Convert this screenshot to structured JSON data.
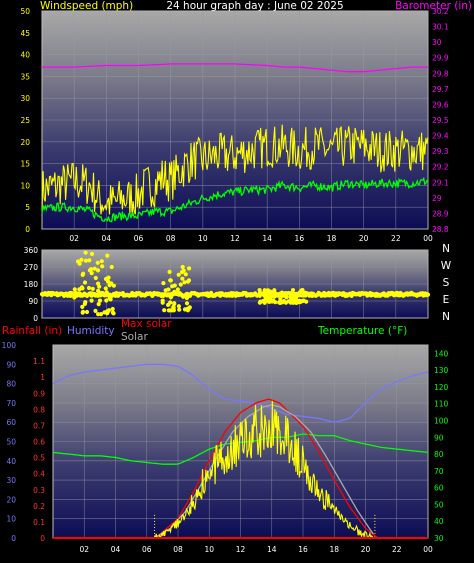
{
  "chart_data": [
    {
      "type": "line",
      "title": "24 hour graph day : June 02 2025",
      "left_axis_label": "Windspeed (mph)",
      "right_axis_label": "Barometer (in)",
      "left_ylim": [
        0,
        50
      ],
      "left_ticks": [
        0,
        5,
        10,
        15,
        20,
        25,
        30,
        35,
        40,
        45,
        50
      ],
      "right_ylim": [
        28.8,
        30.2
      ],
      "right_ticks": [
        "28.8",
        "28.9",
        "29",
        "29.1",
        "29.2",
        "29.3",
        "29.4",
        "29.5",
        "29.6",
        "29.7",
        "29.8",
        "29.9",
        "30",
        "30.1",
        "30.2"
      ],
      "x_range_hours": [
        0,
        24
      ],
      "x_ticks": [
        "02",
        "04",
        "06",
        "08",
        "10",
        "12",
        "14",
        "16",
        "18",
        "20",
        "22",
        "00"
      ],
      "grid": true,
      "series": [
        {
          "key": "gust",
          "color": "#ffff00",
          "axis": "left",
          "x": [
            0,
            1,
            2,
            3,
            3.5,
            4,
            4.5,
            5,
            5.5,
            6,
            6.5,
            7,
            7.5,
            8,
            8.5,
            9,
            9.5,
            10,
            11,
            12,
            13,
            14,
            15,
            16,
            17,
            18,
            19,
            20,
            21,
            22,
            23,
            24
          ],
          "y": [
            9,
            10,
            11,
            10,
            7,
            6,
            6,
            7,
            7,
            8,
            10,
            10,
            12,
            11,
            13,
            15,
            16,
            16,
            17,
            17,
            18,
            19,
            19,
            18,
            19,
            18,
            19,
            19,
            18,
            18,
            18,
            18
          ],
          "noise": 5
        },
        {
          "key": "average",
          "color": "#00ff00",
          "axis": "left",
          "x": [
            0,
            1,
            2,
            3,
            3.5,
            4,
            5,
            6,
            7,
            8,
            9,
            10,
            11,
            12,
            13,
            14,
            15,
            16,
            17,
            18,
            19,
            20,
            21,
            22,
            23,
            24
          ],
          "y": [
            4.5,
            5,
            5,
            4,
            3,
            2.5,
            3,
            3,
            4,
            4,
            5.5,
            7,
            8,
            8.5,
            9,
            9,
            10,
            9.5,
            10,
            9.5,
            10.5,
            10,
            10.5,
            10.5,
            10.5,
            11
          ],
          "noise": 1
        },
        {
          "key": "barometer",
          "color": "#ff00ff",
          "axis": "right",
          "x": [
            0,
            2,
            4,
            6,
            8,
            10,
            12,
            14,
            15,
            16,
            17,
            18,
            19,
            20,
            21,
            22,
            23,
            24
          ],
          "y": [
            29.84,
            29.84,
            29.85,
            29.85,
            29.86,
            29.86,
            29.86,
            29.85,
            29.84,
            29.84,
            29.83,
            29.82,
            29.81,
            29.81,
            29.82,
            29.83,
            29.84,
            29.84
          ]
        }
      ]
    },
    {
      "type": "scatter",
      "axis_label_right": [
        "N",
        "W",
        "S",
        "E",
        "N"
      ],
      "ylim": [
        0,
        360
      ],
      "y_ticks": [
        0,
        90,
        180,
        270,
        360
      ],
      "x_range_hours": [
        0,
        24
      ],
      "grid": true,
      "series": [
        {
          "key": "wind_direction",
          "color": "#ffff00",
          "band_center": 125,
          "band_spread": 8,
          "clusters": [
            {
              "from": 2.0,
              "to": 4.5,
              "min": 20,
              "max": 355
            },
            {
              "from": 7.5,
              "to": 9.2,
              "min": 40,
              "max": 270
            },
            {
              "from": 13.5,
              "to": 16.5,
              "min": 80,
              "max": 150
            }
          ]
        }
      ]
    },
    {
      "type": "line",
      "legend": [
        {
          "text": "Rainfall (in)",
          "color": "#ff0000"
        },
        {
          "text": "Humidity",
          "color": "#7777ff"
        },
        {
          "text": "Max solar",
          "color": "#ff0000"
        },
        {
          "text": "Solar",
          "color": "#aaaaaa"
        },
        {
          "text": "Temperature (°F)",
          "color": "#00ff00"
        }
      ],
      "humidity_axis_ticks": [
        0,
        10,
        20,
        30,
        40,
        50,
        60,
        70,
        80,
        90,
        100
      ],
      "humidity_ylim": [
        0,
        100
      ],
      "rain_axis_ticks": [
        "0",
        "0.1",
        "0.2",
        "0.3",
        "0.4",
        "0.5",
        "0.6",
        "0.7",
        "0.8",
        "0.9",
        "1",
        "1.1"
      ],
      "rain_ylim": [
        0,
        1.2
      ],
      "temp_axis_ticks": [
        30,
        40,
        50,
        60,
        70,
        80,
        90,
        100,
        110,
        120,
        130,
        140
      ],
      "temp_ylim": [
        30,
        145
      ],
      "x_range_hours": [
        0,
        24
      ],
      "x_ticks": [
        "02",
        "04",
        "06",
        "08",
        "10",
        "12",
        "14",
        "16",
        "18",
        "20",
        "22",
        "00"
      ],
      "grid": true,
      "series": [
        {
          "key": "humidity",
          "color": "#7777ff",
          "axis": "humidity",
          "x": [
            0,
            1,
            2,
            3,
            4,
            5,
            6,
            7,
            8,
            9,
            10,
            11,
            12,
            13,
            14,
            15,
            16,
            17,
            18,
            19,
            20,
            21,
            22,
            23,
            24
          ],
          "y": [
            80,
            84,
            86,
            87,
            88,
            89,
            90,
            90,
            89,
            84,
            77,
            72,
            71,
            70,
            67,
            64,
            63,
            62,
            60,
            62,
            70,
            77,
            81,
            84,
            86
          ]
        },
        {
          "key": "temperature",
          "color": "#00ff00",
          "axis": "temp",
          "x": [
            0,
            1,
            2,
            3,
            4,
            5,
            6,
            7,
            8,
            8.5,
            9,
            10,
            11,
            12,
            13,
            14,
            15,
            16,
            17,
            18,
            19,
            20,
            21,
            22,
            23,
            24
          ],
          "y": [
            81,
            80,
            79,
            79,
            78,
            76,
            75,
            74,
            74,
            76,
            78,
            83,
            86,
            87,
            88,
            90,
            90,
            92,
            91,
            91,
            88,
            86,
            84,
            83,
            82,
            81
          ]
        },
        {
          "key": "max_solar",
          "color": "#ff0000",
          "axis": "humidity",
          "x": [
            6.5,
            7,
            8,
            9,
            10,
            11,
            12,
            13,
            13.8,
            14.5,
            15,
            16,
            17,
            18,
            19,
            20,
            20.8
          ],
          "y": [
            0,
            3,
            10,
            24,
            40,
            55,
            65,
            70,
            72,
            70,
            66,
            58,
            45,
            30,
            16,
            5,
            0
          ]
        },
        {
          "key": "solar_envelope",
          "color": "#aaaaaa",
          "axis": "humidity",
          "x": [
            6.5,
            7.5,
            8.5,
            9.5,
            10.5,
            11.5,
            12.5,
            13.5,
            14,
            14.5,
            15.5,
            16.5,
            17.5,
            18.5,
            19.5,
            20.5
          ],
          "y": [
            0,
            5,
            14,
            28,
            42,
            55,
            63,
            68,
            69,
            68,
            63,
            55,
            42,
            28,
            14,
            2
          ]
        },
        {
          "key": "solar",
          "color": "#ffff00",
          "axis": "humidity",
          "x": [
            6.5,
            7,
            8,
            8.5,
            9,
            9.5,
            10,
            10.5,
            11,
            11.5,
            12,
            12.5,
            13,
            13.5,
            14,
            14.5,
            15,
            15.5,
            16,
            16.5,
            17,
            17.5,
            18,
            18.5,
            19,
            19.5,
            20,
            20.5
          ],
          "y": [
            0,
            2,
            10,
            16,
            24,
            34,
            40,
            48,
            54,
            60,
            62,
            66,
            68,
            70,
            71,
            69,
            64,
            58,
            46,
            38,
            30,
            24,
            18,
            12,
            8,
            4,
            2,
            0
          ],
          "noise": 18
        },
        {
          "key": "rainfall",
          "color": "#ff0000",
          "axis": "rain",
          "x": [
            0,
            24
          ],
          "y": [
            0,
            0
          ]
        }
      ]
    }
  ]
}
